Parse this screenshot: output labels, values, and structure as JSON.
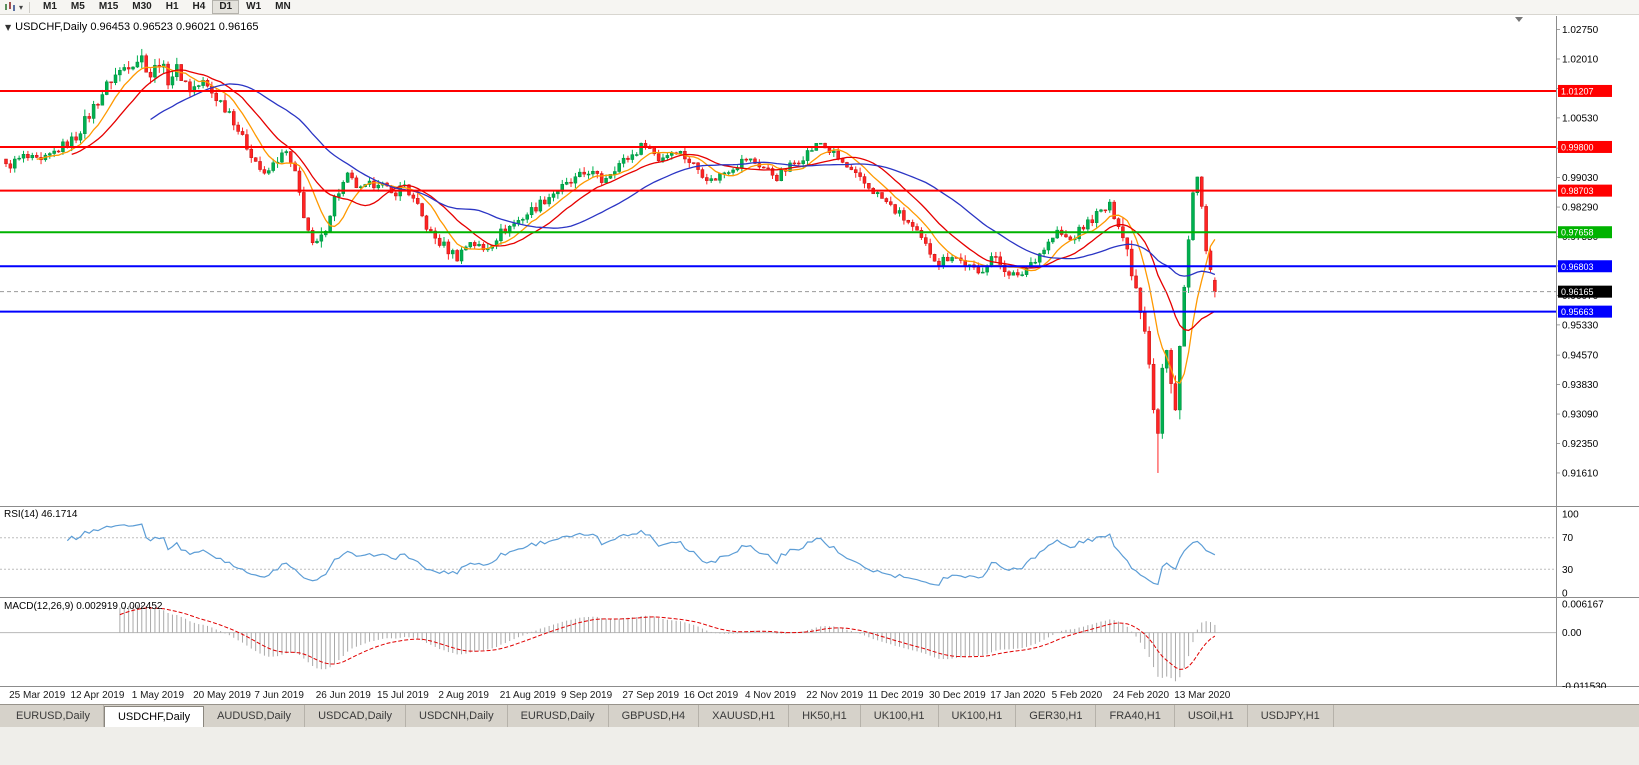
{
  "toolbar": {
    "timeframes": [
      {
        "label": "M1",
        "active": false
      },
      {
        "label": "M5",
        "active": false
      },
      {
        "label": "M15",
        "active": false
      },
      {
        "label": "M30",
        "active": false
      },
      {
        "label": "H1",
        "active": false
      },
      {
        "label": "H4",
        "active": false
      },
      {
        "label": "D1",
        "active": true
      },
      {
        "label": "W1",
        "active": false
      },
      {
        "label": "MN",
        "active": false
      }
    ]
  },
  "chart_data": {
    "type": "candlestick",
    "symbol": "USDCHF",
    "timeframe": "Daily",
    "title_text": "USDCHF,Daily 0.96453 0.96523 0.96021 0.96165",
    "last_candle": {
      "open": 0.96453,
      "high": 0.96523,
      "low": 0.96021,
      "close": 0.96165
    },
    "current_price_label": "0.96165",
    "y_axis": {
      "max": 1.0309,
      "min": 0.9078,
      "tick_labels": [
        "1.02750",
        "1.02010",
        "1.01270",
        "1.00530",
        "0.99770",
        "0.99030",
        "0.98290",
        "0.97550",
        "0.96810",
        "0.96070",
        "0.95330",
        "0.94570",
        "0.93830",
        "0.93090",
        "0.92350",
        "0.91610"
      ]
    },
    "x_labels": [
      "25 Mar 2019",
      "12 Apr 2019",
      "1 May 2019",
      "20 May 2019",
      "7 Jun 2019",
      "26 Jun 2019",
      "15 Jul 2019",
      "2 Aug 2019",
      "21 Aug 2019",
      "9 Sep 2019",
      "27 Sep 2019",
      "16 Oct 2019",
      "4 Nov 2019",
      "22 Nov 2019",
      "11 Dec 2019",
      "30 Dec 2019",
      "17 Jan 2020",
      "5 Feb 2020",
      "24 Feb 2020",
      "13 Mar 2020"
    ],
    "h_lines": [
      {
        "price": 1.01207,
        "label": "1.01207",
        "color": "#ff0000"
      },
      {
        "price": 0.998,
        "label": "0.99800",
        "color": "#ff0000"
      },
      {
        "price": 0.98703,
        "label": "0.98703",
        "color": "#ff0000"
      },
      {
        "price": 0.97658,
        "label": "0.97658",
        "color": "#00b300"
      },
      {
        "price": 0.96803,
        "label": "0.96803",
        "color": "#0000ff"
      },
      {
        "price": 0.95663,
        "label": "0.95663",
        "color": "#0000ff"
      }
    ],
    "candles": {
      "count": 277,
      "deep_low": {
        "index": 263,
        "price": 0.9161
      },
      "anchors": [
        [
          0,
          0.993
        ],
        [
          4,
          0.9955
        ],
        [
          8,
          0.994
        ],
        [
          12,
          0.9975
        ],
        [
          16,
          1.0005
        ],
        [
          20,
          1.008
        ],
        [
          24,
          1.015
        ],
        [
          28,
          1.019
        ],
        [
          31,
          1.0205
        ],
        [
          33,
          1.016
        ],
        [
          35,
          1.0195
        ],
        [
          37,
          1.015
        ],
        [
          39,
          1.0175
        ],
        [
          42,
          1.0125
        ],
        [
          45,
          1.014
        ],
        [
          48,
          1.0105
        ],
        [
          51,
          1.007
        ],
        [
          54,
          1.0
        ],
        [
          57,
          0.9945
        ],
        [
          59,
          0.9905
        ],
        [
          62,
          0.995
        ],
        [
          64,
          0.9965
        ],
        [
          66,
          0.9905
        ],
        [
          68,
          0.9815
        ],
        [
          70,
          0.9725
        ],
        [
          72,
          0.9745
        ],
        [
          75,
          0.985
        ],
        [
          78,
          0.9905
        ],
        [
          81,
          0.987
        ],
        [
          85,
          0.9895
        ],
        [
          88,
          0.986
        ],
        [
          91,
          0.9885
        ],
        [
          94,
          0.9825
        ],
        [
          97,
          0.976
        ],
        [
          100,
          0.973
        ],
        [
          103,
          0.9705
        ],
        [
          106,
          0.9745
        ],
        [
          109,
          0.972
        ],
        [
          113,
          0.9765
        ],
        [
          117,
          0.9795
        ],
        [
          121,
          0.983
        ],
        [
          125,
          0.9865
        ],
        [
          129,
          0.989
        ],
        [
          133,
          0.992
        ],
        [
          136,
          0.9895
        ],
        [
          139,
          0.993
        ],
        [
          143,
          0.996
        ],
        [
          146,
          0.999
        ],
        [
          149,
          0.995
        ],
        [
          153,
          0.9975
        ],
        [
          157,
          0.9935
        ],
        [
          161,
          0.9895
        ],
        [
          165,
          0.9925
        ],
        [
          169,
          0.995
        ],
        [
          172,
          0.9935
        ],
        [
          176,
          0.9905
        ],
        [
          180,
          0.994
        ],
        [
          184,
          0.9975
        ],
        [
          186,
          0.999
        ],
        [
          190,
          0.995
        ],
        [
          194,
          0.9905
        ],
        [
          198,
          0.987
        ],
        [
          202,
          0.983
        ],
        [
          206,
          0.979
        ],
        [
          210,
          0.973
        ],
        [
          213,
          0.969
        ],
        [
          216,
          0.971
        ],
        [
          219,
          0.9685
        ],
        [
          222,
          0.966
        ],
        [
          225,
          0.9705
        ],
        [
          228,
          0.9675
        ],
        [
          231,
          0.965
        ],
        [
          234,
          0.969
        ],
        [
          237,
          0.9725
        ],
        [
          240,
          0.9765
        ],
        [
          243,
          0.9745
        ],
        [
          246,
          0.978
        ],
        [
          249,
          0.981
        ],
        [
          252,
          0.983
        ],
        [
          254,
          0.979
        ],
        [
          256,
          0.972
        ],
        [
          258,
          0.963
        ],
        [
          260,
          0.953
        ],
        [
          261,
          0.945
        ],
        [
          262,
          0.933
        ],
        [
          263,
          0.926
        ],
        [
          264,
          0.942
        ],
        [
          265,
          0.946
        ],
        [
          266,
          0.938
        ],
        [
          267,
          0.934
        ],
        [
          268,
          0.948
        ],
        [
          269,
          0.962
        ],
        [
          270,
          0.974
        ],
        [
          271,
          0.986
        ],
        [
          272,
          0.9885
        ],
        [
          273,
          0.982
        ],
        [
          274,
          0.973
        ],
        [
          275,
          0.966
        ],
        [
          276,
          0.96165
        ]
      ]
    },
    "moving_averages": [
      {
        "period": 8,
        "color": "#ff9900"
      },
      {
        "period": 16,
        "color": "#e60000"
      },
      {
        "period": 34,
        "color": "#2b35c4"
      }
    ],
    "indicators": {
      "rsi": {
        "title": "RSI(14) 46.1714",
        "period": 14,
        "line_color": "#5c9dd6",
        "levels": [
          {
            "value": 100,
            "label": "100"
          },
          {
            "value": 70,
            "label": "70"
          },
          {
            "value": 30,
            "label": "30"
          },
          {
            "value": 0,
            "label": "0"
          }
        ]
      },
      "macd": {
        "title": "MACD(12,26,9) 0.002919 0.002452",
        "fast": 12,
        "slow": 26,
        "signal": 9,
        "bar_color": "#a9a9a9",
        "signal_color": "#e00000",
        "axis_labels": [
          {
            "value": 0.006167,
            "label": "0.006167"
          },
          {
            "value": 0,
            "label": "0.00"
          },
          {
            "value": -0.01153,
            "label": "-0.011530"
          }
        ]
      }
    },
    "colors": {
      "up": "#00b050",
      "down": "#ff2424",
      "up_dark": "#008c3c",
      "down_dark": "#c01414"
    }
  },
  "tabs": [
    {
      "label": "EURUSD,Daily",
      "active": false
    },
    {
      "label": "USDCHF,Daily",
      "active": true
    },
    {
      "label": "AUDUSD,Daily",
      "active": false
    },
    {
      "label": "USDCAD,Daily",
      "active": false
    },
    {
      "label": "USDCNH,Daily",
      "active": false
    },
    {
      "label": "EURUSD,Daily",
      "active": false
    },
    {
      "label": "GBPUSD,H4",
      "active": false
    },
    {
      "label": "XAUUSD,H1",
      "active": false
    },
    {
      "label": "HK50,H1",
      "active": false
    },
    {
      "label": "UK100,H1",
      "active": false
    },
    {
      "label": "UK100,H1",
      "active": false
    },
    {
      "label": "GER30,H1",
      "active": false
    },
    {
      "label": "FRA40,H1",
      "active": false
    },
    {
      "label": "USOil,H1",
      "active": false
    },
    {
      "label": "USDJPY,H1",
      "active": false
    }
  ]
}
